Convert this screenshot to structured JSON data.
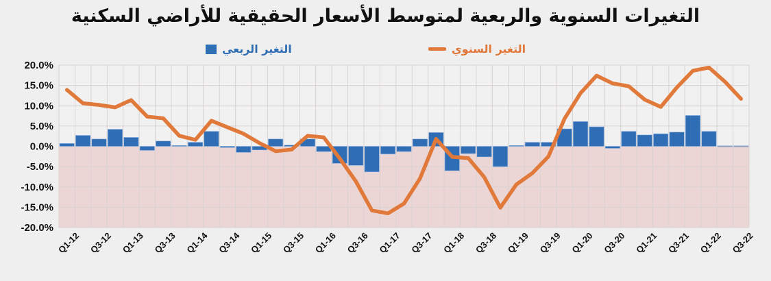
{
  "title": "التغيرات السنوية والربعية لمتوسط الأسعار الحقيقية للأراضي السكنية",
  "legend": {
    "quarterly_label": "التغير الربعي",
    "annual_label": "التغير السنوي"
  },
  "colors": {
    "bars": "#2f6db5",
    "line": "#e0793a",
    "negative_zone": "#ecd6d5",
    "background": "#efefef"
  },
  "chart_data": {
    "type": "bar+line",
    "title": "التغيرات السنوية والربعية لمتوسط الأسعار الحقيقية للأراضي السكنية",
    "xlabel": "",
    "ylabel": "",
    "ylim": [
      -20,
      20
    ],
    "yticks": [
      "20.0%",
      "15.0%",
      "10.0%",
      "5.0%",
      "0.0%",
      "-5.0%",
      "-10.0%",
      "-15.0%",
      "-20.0%"
    ],
    "grid": true,
    "legend_position": "top",
    "categories": [
      "Q1-12",
      "Q2-12",
      "Q3-12",
      "Q4-12",
      "Q1-13",
      "Q2-13",
      "Q3-13",
      "Q4-13",
      "Q1-14",
      "Q2-14",
      "Q3-14",
      "Q4-14",
      "Q1-15",
      "Q2-15",
      "Q3-15",
      "Q4-15",
      "Q1-16",
      "Q2-16",
      "Q3-16",
      "Q4-16",
      "Q1-17",
      "Q2-17",
      "Q3-17",
      "Q4-17",
      "Q1-18",
      "Q2-18",
      "Q3-18",
      "Q4-18",
      "Q1-19",
      "Q2-19",
      "Q3-19",
      "Q4-19",
      "Q1-20",
      "Q2-20",
      "Q3-20",
      "Q4-20",
      "Q1-21",
      "Q2-21",
      "Q3-21",
      "Q4-21",
      "Q1-22",
      "Q2-22",
      "Q3-22"
    ],
    "tick_labels_shown": [
      "Q1-12",
      "Q3-12",
      "Q1-13",
      "Q3-13",
      "Q1-14",
      "Q3-14",
      "Q1-15",
      "Q3-15",
      "Q1-16",
      "Q3-16",
      "Q1-17",
      "Q3-17",
      "Q1-18",
      "Q3-18",
      "Q1-19",
      "Q3-19",
      "Q1-20",
      "Q3-20",
      "Q1-21",
      "Q3-21",
      "Q1-22",
      "Q3-22"
    ],
    "series": [
      {
        "name": "التغير الربعي",
        "type": "bar",
        "values": [
          0.7,
          2.7,
          1.8,
          4.2,
          2.2,
          -1.0,
          1.3,
          0.2,
          1.0,
          3.7,
          -0.3,
          -1.5,
          -0.9,
          1.8,
          0.3,
          1.8,
          -1.3,
          -4.2,
          -4.7,
          -6.3,
          -1.9,
          -1.3,
          1.8,
          3.4,
          -6.0,
          -1.8,
          -2.6,
          -5.0,
          0.2,
          1.0,
          1.0,
          4.3,
          6.1,
          4.8,
          -0.5,
          3.7,
          2.8,
          3.1,
          3.5,
          7.6,
          3.7,
          0.0,
          0.0
        ]
      },
      {
        "name": "التغير السنوي",
        "type": "line",
        "values": [
          13.9,
          10.6,
          10.2,
          9.6,
          11.4,
          7.3,
          6.9,
          2.6,
          1.6,
          6.3,
          4.7,
          3.1,
          0.8,
          -1.2,
          -0.8,
          2.6,
          2.2,
          -3.0,
          -8.6,
          -15.8,
          -16.5,
          -14.1,
          -7.9,
          1.8,
          -2.6,
          -2.9,
          -7.6,
          -15.1,
          -9.4,
          -6.6,
          -2.5,
          6.8,
          13.1,
          17.4,
          15.5,
          14.8,
          11.5,
          9.7,
          14.5,
          18.6,
          19.4,
          15.9,
          11.7
        ]
      }
    ]
  }
}
